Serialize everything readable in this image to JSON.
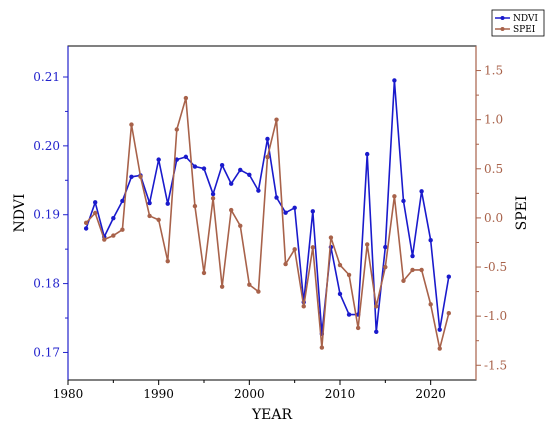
{
  "chart_data": {
    "type": "line",
    "x": [
      1982,
      1983,
      1984,
      1985,
      1986,
      1987,
      1988,
      1989,
      1990,
      1991,
      1992,
      1993,
      1994,
      1995,
      1996,
      1997,
      1998,
      1999,
      2000,
      2001,
      2002,
      2003,
      2004,
      2005,
      2006,
      2007,
      2008,
      2009,
      2010,
      2011,
      2012,
      2013,
      2014,
      2015,
      2016,
      2017,
      2018,
      2019,
      2020,
      2021,
      2022
    ],
    "series": [
      {
        "name": "NDVI",
        "axis": "left",
        "color": "#1a1acc",
        "values": [
          0.188,
          0.1918,
          0.1868,
          0.1895,
          0.192,
          0.1955,
          0.1957,
          0.1917,
          0.198,
          0.1916,
          0.198,
          0.1984,
          0.197,
          0.1967,
          0.193,
          0.1972,
          0.1945,
          0.1965,
          0.1958,
          0.1935,
          0.201,
          0.1925,
          0.1903,
          0.191,
          0.1773,
          0.1905,
          0.1727,
          0.1853,
          0.1785,
          0.1755,
          0.1755,
          0.1988,
          0.173,
          0.1853,
          0.2095,
          0.192,
          0.184,
          0.1934,
          0.1863,
          0.1733,
          0.181
        ]
      },
      {
        "name": "SPEI",
        "axis": "right",
        "color": "#a8624a",
        "values": [
          -0.05,
          0.05,
          -0.22,
          -0.18,
          -0.12,
          0.95,
          0.42,
          0.02,
          -0.02,
          -0.44,
          0.9,
          1.22,
          0.12,
          -0.56,
          0.2,
          -0.7,
          0.08,
          -0.08,
          -0.68,
          -0.75,
          0.62,
          1.0,
          -0.47,
          -0.32,
          -0.9,
          -0.3,
          -1.32,
          -0.2,
          -0.48,
          -0.58,
          -1.12,
          -0.27,
          -0.9,
          -0.5,
          0.22,
          -0.64,
          -0.53,
          -0.53,
          -0.88,
          -1.33,
          -0.97
        ]
      }
    ],
    "xlabel": "YEAR",
    "ylabel_left": "NDVI",
    "ylabel_right": "SPEI",
    "xlim": [
      1980,
      2025
    ],
    "ylim_left": [
      0.166,
      0.2145
    ],
    "ylim_right": [
      -1.65,
      1.75
    ],
    "xticks": [
      1980,
      1990,
      2000,
      2010,
      2020
    ],
    "yticks_left": [
      0.17,
      0.18,
      0.19,
      0.2,
      0.21
    ],
    "yticks_left_labels": [
      "0.17",
      "0.18",
      "0.19",
      "0.20",
      "0.21"
    ],
    "yticks_right": [
      -1.5,
      -1.0,
      -0.5,
      0.0,
      0.5,
      1.0,
      1.5
    ],
    "yticks_right_labels": [
      "-1.5",
      "-1.0",
      "-0.5",
      "0.0",
      "0.5",
      "1.0",
      "1.5"
    ],
    "left_axis_color": "#2222cc",
    "right_axis_color": "#a8624a",
    "grid": false,
    "legend_position": "top-right"
  }
}
